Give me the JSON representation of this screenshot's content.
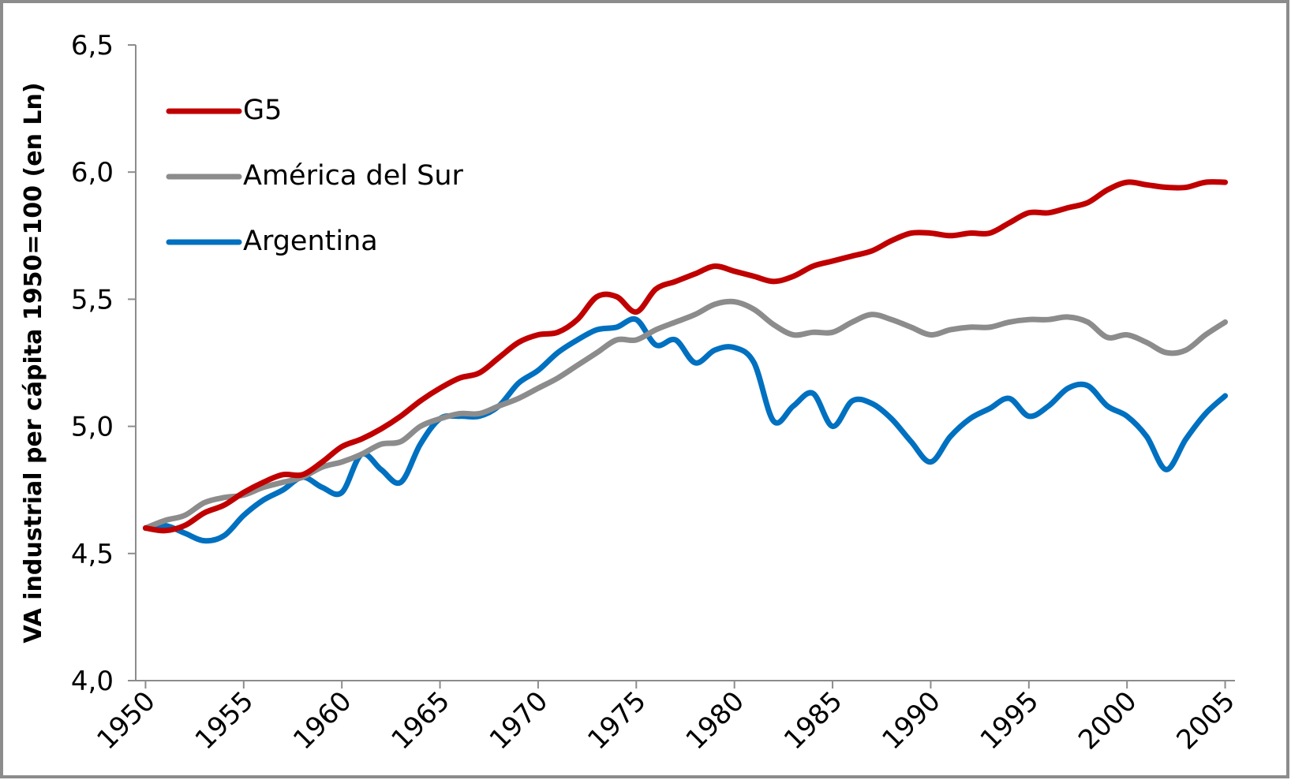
{
  "chart_data": {
    "type": "line",
    "y_label": "VA industrial per cápita 1950=100 (en Ln)",
    "x": [
      1950,
      1951,
      1952,
      1953,
      1954,
      1955,
      1956,
      1957,
      1958,
      1959,
      1960,
      1961,
      1962,
      1963,
      1964,
      1965,
      1966,
      1967,
      1968,
      1969,
      1970,
      1971,
      1972,
      1973,
      1974,
      1975,
      1976,
      1977,
      1978,
      1979,
      1980,
      1981,
      1982,
      1983,
      1984,
      1985,
      1986,
      1987,
      1988,
      1989,
      1990,
      1991,
      1992,
      1993,
      1994,
      1995,
      1996,
      1997,
      1998,
      1999,
      2000,
      2001,
      2002,
      2003,
      2004,
      2005
    ],
    "series": [
      {
        "name": "G5",
        "color": "#c00000",
        "values": [
          4.6,
          4.59,
          4.61,
          4.66,
          4.69,
          4.74,
          4.78,
          4.81,
          4.81,
          4.86,
          4.92,
          4.95,
          4.99,
          5.04,
          5.1,
          5.15,
          5.19,
          5.21,
          5.27,
          5.33,
          5.36,
          5.37,
          5.42,
          5.51,
          5.51,
          5.45,
          5.54,
          5.57,
          5.6,
          5.63,
          5.61,
          5.59,
          5.57,
          5.59,
          5.63,
          5.65,
          5.67,
          5.69,
          5.73,
          5.76,
          5.76,
          5.75,
          5.76,
          5.76,
          5.8,
          5.84,
          5.84,
          5.86,
          5.88,
          5.93,
          5.96,
          5.95,
          5.94,
          5.94,
          5.96,
          5.96
        ]
      },
      {
        "name": "América del Sur",
        "color": "#8c8c8c",
        "values": [
          4.6,
          4.63,
          4.65,
          4.7,
          4.72,
          4.73,
          4.76,
          4.78,
          4.8,
          4.84,
          4.86,
          4.89,
          4.93,
          4.94,
          5.0,
          5.03,
          5.05,
          5.05,
          5.08,
          5.11,
          5.15,
          5.19,
          5.24,
          5.29,
          5.34,
          5.34,
          5.38,
          5.41,
          5.44,
          5.48,
          5.49,
          5.46,
          5.4,
          5.36,
          5.37,
          5.37,
          5.41,
          5.44,
          5.42,
          5.39,
          5.36,
          5.38,
          5.39,
          5.39,
          5.41,
          5.42,
          5.42,
          5.43,
          5.41,
          5.35,
          5.36,
          5.33,
          5.29,
          5.3,
          5.36,
          5.41
        ]
      },
      {
        "name": "Argentina",
        "color": "#0070c0",
        "values": [
          4.6,
          4.61,
          4.58,
          4.55,
          4.57,
          4.65,
          4.71,
          4.75,
          4.8,
          4.76,
          4.74,
          4.89,
          4.83,
          4.78,
          4.93,
          5.03,
          5.04,
          5.04,
          5.08,
          5.17,
          5.22,
          5.29,
          5.34,
          5.38,
          5.39,
          5.42,
          5.32,
          5.34,
          5.25,
          5.3,
          5.31,
          5.25,
          5.02,
          5.08,
          5.13,
          5.0,
          5.1,
          5.09,
          5.03,
          4.94,
          4.86,
          4.96,
          5.03,
          5.07,
          5.11,
          5.04,
          5.08,
          5.15,
          5.16,
          5.08,
          5.04,
          4.96,
          4.83,
          4.95,
          5.05,
          5.12
        ]
      }
    ],
    "xlim": [
      1949.5,
      2005.5
    ],
    "xticks": [
      1950,
      1955,
      1960,
      1965,
      1970,
      1975,
      1980,
      1985,
      1990,
      1995,
      2000,
      2005
    ],
    "ylim": [
      4.0,
      6.5
    ],
    "yticks": [
      {
        "value": 4.0,
        "label": "4,0"
      },
      {
        "value": 4.5,
        "label": "4,5"
      },
      {
        "value": 5.0,
        "label": "5,0"
      },
      {
        "value": 5.5,
        "label": "5,5"
      },
      {
        "value": 6.0,
        "label": "6,0"
      },
      {
        "value": 6.5,
        "label": "6,5"
      }
    ],
    "legend": "top-left",
    "grid": false
  }
}
